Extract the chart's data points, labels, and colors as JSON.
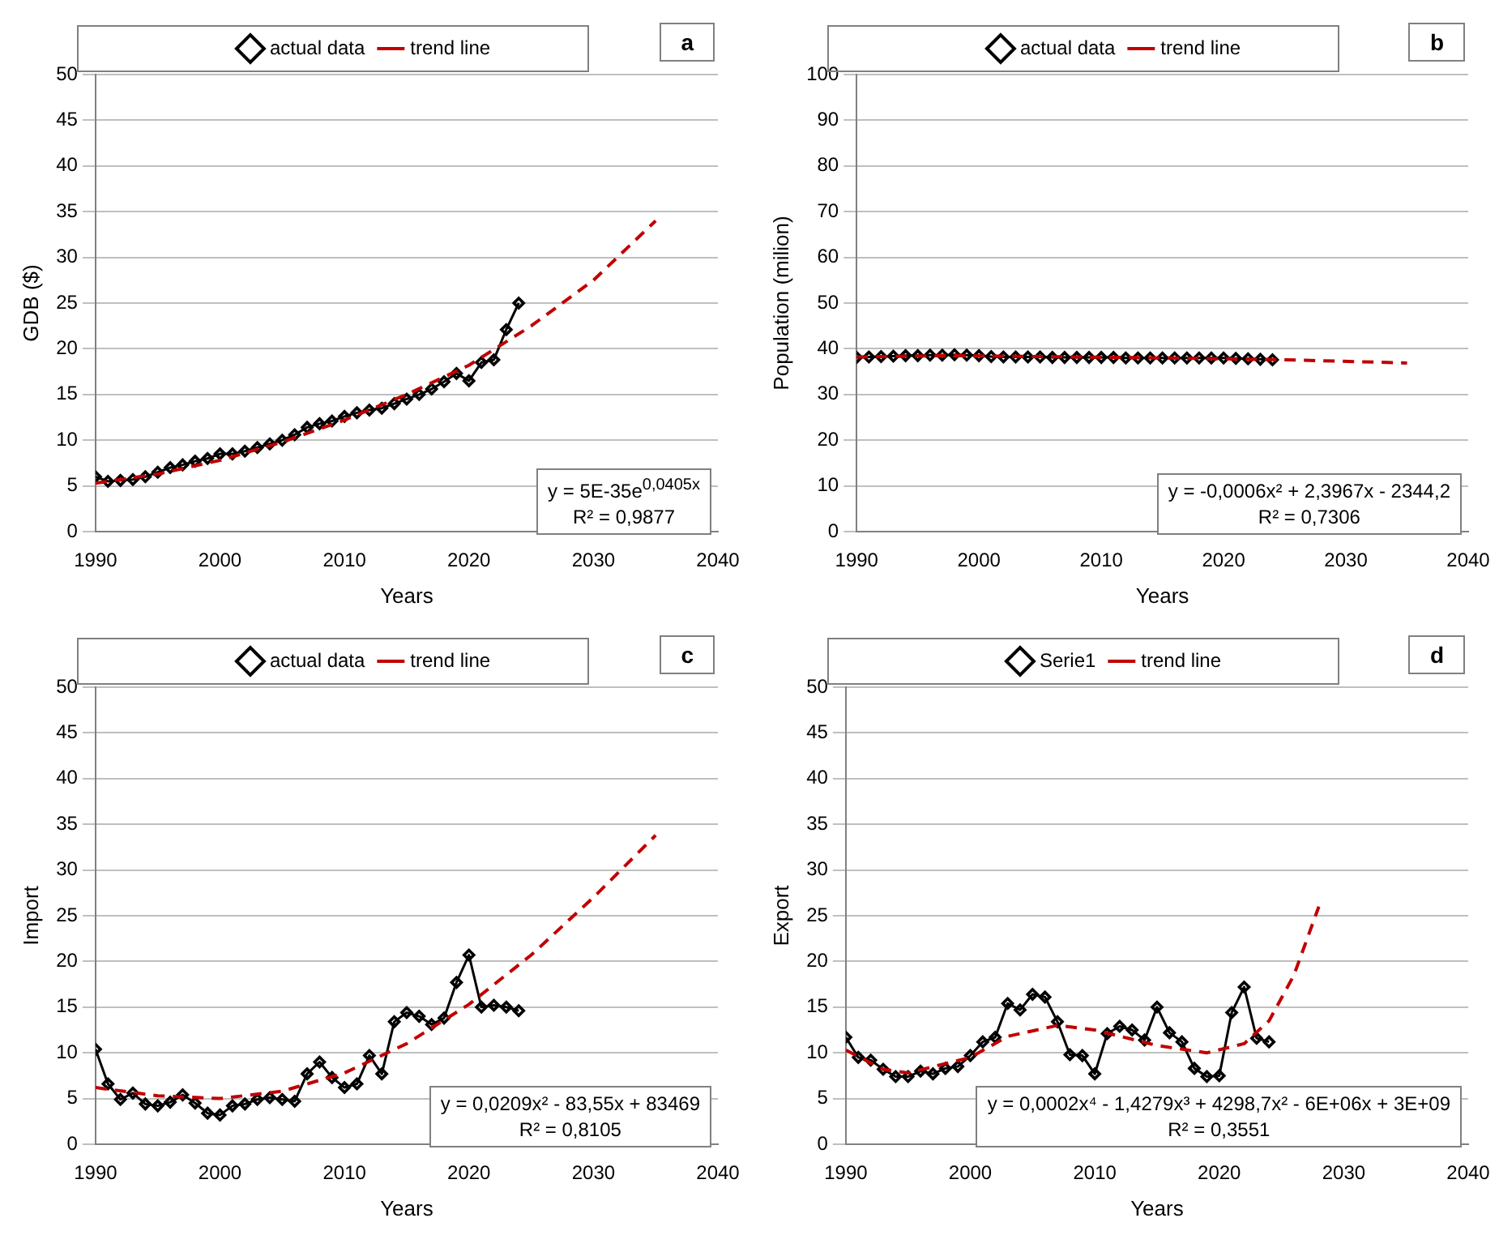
{
  "chart_data": [
    {
      "type": "line",
      "xlabel": "Years",
      "ylabel": "GDB ($)",
      "xlim": [
        1990,
        2040
      ],
      "xticks": [
        1990,
        2000,
        2010,
        2020,
        2030,
        2040
      ],
      "ylim": [
        0,
        50
      ],
      "yticks": [
        0,
        5,
        10,
        15,
        20,
        25,
        30,
        35,
        40,
        45,
        50
      ],
      "grid": "y",
      "legend": "top",
      "annotations": [
        "a",
        "y = 5E-35e$^{0,0405x}$",
        "R² = 0,9877"
      ],
      "x": [
        1990,
        1991,
        1992,
        1993,
        1994,
        1995,
        1996,
        1997,
        1998,
        1999,
        2000,
        2001,
        2002,
        2003,
        2004,
        2005,
        2006,
        2007,
        2008,
        2009,
        2010,
        2011,
        2012,
        2013,
        2014,
        2015,
        2016,
        2017,
        2018,
        2019,
        2020,
        2021,
        2022,
        2023,
        2024
      ],
      "series": [
        {
          "name": "actual data",
          "color": "#000000",
          "marker": "diamond",
          "line_style": "solid",
          "values": [
            6.0,
            5.5,
            5.6,
            5.7,
            6.0,
            6.5,
            7.0,
            7.3,
            7.7,
            8.0,
            8.5,
            8.5,
            8.8,
            9.2,
            9.6,
            10.0,
            10.6,
            11.4,
            11.8,
            12.1,
            12.6,
            13.0,
            13.3,
            13.5,
            14.0,
            14.5,
            15.0,
            15.6,
            16.4,
            17.3,
            16.5,
            18.5,
            18.8,
            22.1,
            25.0
          ]
        },
        {
          "name": "trend line",
          "color": "#c00000",
          "marker": "none",
          "line_style": "dashed",
          "x": [
            1990,
            1995,
            2000,
            2005,
            2010,
            2015,
            2020,
            2025,
            2030,
            2035
          ],
          "values": [
            5.3,
            6.3,
            7.8,
            9.8,
            12.2,
            15.0,
            18.2,
            22.5,
            27.5,
            34.0
          ]
        }
      ]
    },
    {
      "type": "line",
      "xlabel": "Years",
      "ylabel": "Population (milion)",
      "xlim": [
        1990,
        2040
      ],
      "xticks": [
        1990,
        2000,
        2010,
        2020,
        2030,
        2040
      ],
      "ylim": [
        0,
        100
      ],
      "yticks": [
        0,
        10,
        20,
        30,
        40,
        50,
        60,
        70,
        80,
        90,
        100
      ],
      "grid": "y",
      "legend": "top",
      "annotations": [
        "b",
        "y = -0,0006x² + 2,3967x - 2344,2",
        "R² = 0,7306"
      ],
      "x": [
        1990,
        1991,
        1992,
        1993,
        1994,
        1995,
        1996,
        1997,
        1998,
        1999,
        2000,
        2001,
        2002,
        2003,
        2004,
        2005,
        2006,
        2007,
        2008,
        2009,
        2010,
        2011,
        2012,
        2013,
        2014,
        2015,
        2016,
        2017,
        2018,
        2019,
        2020,
        2021,
        2022,
        2023,
        2024
      ],
      "series": [
        {
          "name": "actual data",
          "color": "#000000",
          "marker": "diamond",
          "line_style": "solid",
          "values": [
            38.1,
            38.2,
            38.3,
            38.4,
            38.5,
            38.5,
            38.6,
            38.6,
            38.7,
            38.6,
            38.5,
            38.3,
            38.2,
            38.2,
            38.2,
            38.2,
            38.1,
            38.1,
            38.1,
            38.1,
            38.1,
            38.1,
            38.0,
            38.0,
            38.0,
            38.0,
            38.0,
            38.0,
            38.0,
            38.0,
            38.0,
            37.9,
            37.8,
            37.7,
            37.6
          ]
        },
        {
          "name": "trend line",
          "color": "#c00000",
          "marker": "none",
          "line_style": "dashed",
          "x": [
            1990,
            1997,
            2005,
            2015,
            2025,
            2035
          ],
          "values": [
            38.2,
            38.5,
            38.3,
            38.0,
            37.6,
            36.9
          ]
        }
      ]
    },
    {
      "type": "line",
      "xlabel": "Years",
      "ylabel": "Import",
      "xlim": [
        1990,
        2040
      ],
      "xticks": [
        1990,
        2000,
        2010,
        2020,
        2030,
        2040
      ],
      "ylim": [
        0,
        50
      ],
      "yticks": [
        0,
        5,
        10,
        15,
        20,
        25,
        30,
        35,
        40,
        45,
        50
      ],
      "grid": "y",
      "legend": "top",
      "annotations": [
        "c",
        "y = 0,0209x² - 83,55x + 83469",
        "R² = 0,8105"
      ],
      "x": [
        1990,
        1991,
        1992,
        1993,
        1994,
        1995,
        1996,
        1997,
        1998,
        1999,
        2000,
        2001,
        2002,
        2003,
        2004,
        2005,
        2006,
        2007,
        2008,
        2009,
        2010,
        2011,
        2012,
        2013,
        2014,
        2015,
        2016,
        2017,
        2018,
        2019,
        2020,
        2021,
        2022,
        2023,
        2024
      ],
      "series": [
        {
          "name": "actual data",
          "color": "#000000",
          "marker": "diamond",
          "line_style": "solid",
          "values": [
            10.4,
            6.6,
            4.9,
            5.6,
            4.4,
            4.2,
            4.6,
            5.4,
            4.5,
            3.4,
            3.2,
            4.2,
            4.4,
            4.9,
            5.1,
            4.9,
            4.7,
            7.7,
            9.0,
            7.3,
            6.2,
            6.6,
            9.7,
            7.7,
            13.4,
            14.4,
            14.0,
            13.1,
            13.8,
            17.7,
            20.7,
            15.0,
            15.2,
            15.0,
            14.6
          ]
        },
        {
          "name": "trend line",
          "color": "#c00000",
          "marker": "none",
          "line_style": "dashed",
          "x": [
            1990,
            1995,
            2000,
            2005,
            2010,
            2015,
            2020,
            2025,
            2030,
            2035
          ],
          "values": [
            6.2,
            5.3,
            5.0,
            5.8,
            7.8,
            11.0,
            15.3,
            20.7,
            27.0,
            33.8
          ]
        }
      ]
    },
    {
      "type": "line",
      "xlabel": "Years",
      "ylabel": "Export",
      "xlim": [
        1990,
        2040
      ],
      "xticks": [
        1990,
        2000,
        2010,
        2020,
        2030,
        2040
      ],
      "ylim": [
        0,
        50
      ],
      "yticks": [
        0,
        5,
        10,
        15,
        20,
        25,
        30,
        35,
        40,
        45,
        50
      ],
      "grid": "y",
      "legend": "top",
      "annotations": [
        "d",
        "y = 0,0002x⁴ - 1,4279x³ + 4298,7x² - 6E+06x + 3E+09",
        "R² = 0,3551"
      ],
      "x": [
        1990,
        1991,
        1992,
        1993,
        1994,
        1995,
        1996,
        1997,
        1998,
        1999,
        2000,
        2001,
        2002,
        2003,
        2004,
        2005,
        2006,
        2007,
        2008,
        2009,
        2010,
        2011,
        2012,
        2013,
        2014,
        2015,
        2016,
        2017,
        2018,
        2019,
        2020,
        2021,
        2022,
        2023,
        2024
      ],
      "series": [
        {
          "name": "Serie1",
          "color": "#000000",
          "marker": "diamond",
          "line_style": "solid",
          "values": [
            11.7,
            9.5,
            9.2,
            8.2,
            7.4,
            7.4,
            8.0,
            7.7,
            8.3,
            8.5,
            9.7,
            11.2,
            11.7,
            15.4,
            14.7,
            16.4,
            16.1,
            13.4,
            9.8,
            9.7,
            7.7,
            12.1,
            12.9,
            12.5,
            11.4,
            15.0,
            12.2,
            11.2,
            8.3,
            7.4,
            7.5,
            14.4,
            17.2,
            11.6,
            11.2
          ]
        },
        {
          "name": "trend line",
          "color": "#c00000",
          "marker": "none",
          "line_style": "dashed",
          "x": [
            1990,
            1993,
            1995,
            2000,
            2003,
            2007,
            2010,
            2015,
            2019,
            2022,
            2024,
            2026,
            2028
          ],
          "values": [
            10.3,
            8.2,
            7.8,
            9.5,
            11.8,
            13.0,
            12.5,
            10.8,
            10.0,
            11.0,
            13.5,
            18.5,
            26.0
          ]
        }
      ]
    }
  ]
}
